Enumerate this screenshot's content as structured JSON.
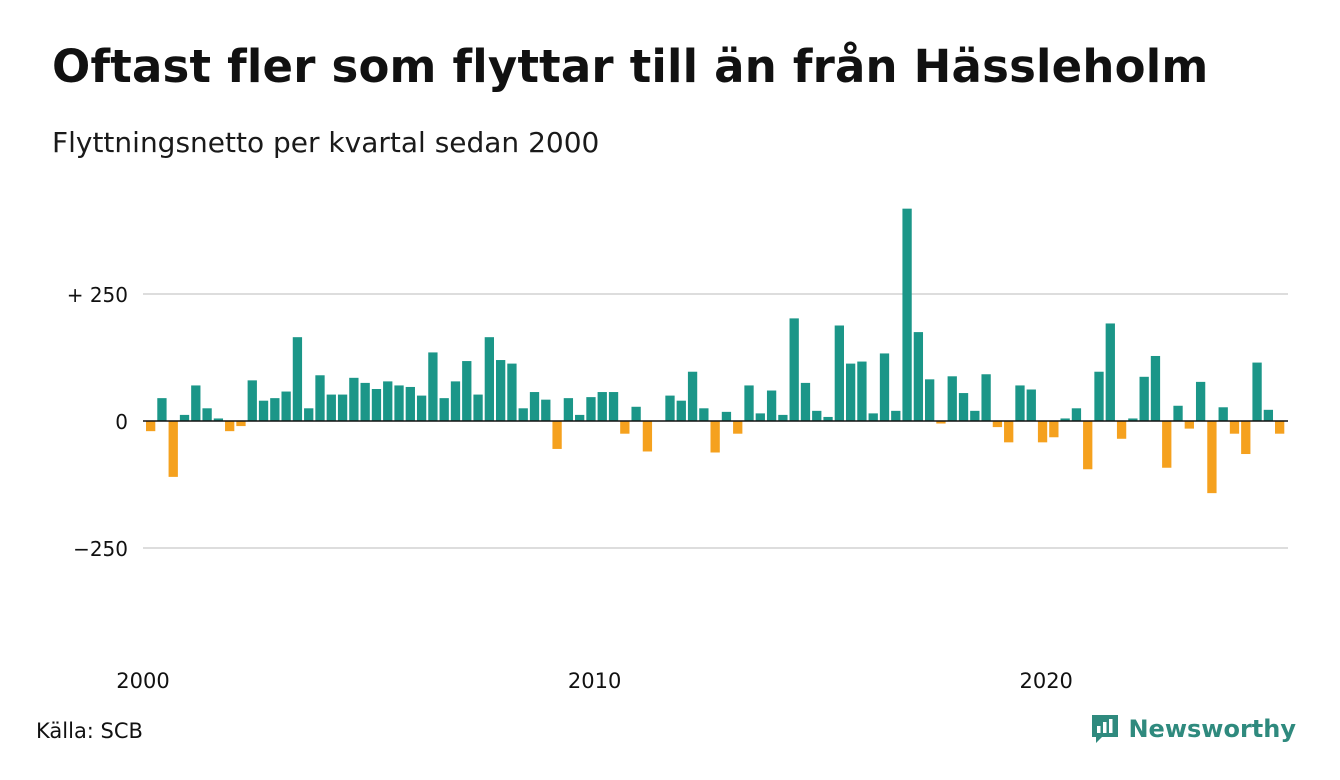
{
  "title": "Oftast fler som flyttar till än från Hässleholm",
  "subtitle": "Flyttningsnetto per kvartal sedan 2000",
  "source": "Källa: SCB",
  "brand": "Newsworthy",
  "colors": {
    "positive": "#1b9688",
    "negative": "#f5a11e",
    "grid": "#dddddd",
    "axis": "#111111",
    "brand": "#2f8a7e"
  },
  "chart_data": {
    "type": "bar",
    "title": "Oftast fler som flyttar till än från Hässleholm",
    "subtitle": "Flyttningsnetto per kvartal sedan 2000",
    "xlabel": "",
    "ylabel": "",
    "ylim": [
      -430,
      430
    ],
    "grid": true,
    "y_ticks": [
      {
        "value": 250,
        "label": "+ 250"
      },
      {
        "value": 0,
        "label": "0"
      },
      {
        "value": -250,
        "label": "−250"
      }
    ],
    "x_ticks": [
      {
        "year": 2000,
        "label": "2000"
      },
      {
        "year": 2010,
        "label": "2010"
      },
      {
        "year": 2020,
        "label": "2020"
      }
    ],
    "start": "2000-Q1",
    "values": [
      -20,
      45,
      -110,
      12,
      70,
      25,
      5,
      -20,
      -10,
      80,
      40,
      45,
      58,
      165,
      25,
      90,
      52,
      52,
      85,
      75,
      63,
      78,
      70,
      67,
      50,
      135,
      45,
      78,
      118,
      52,
      165,
      120,
      113,
      25,
      57,
      42,
      -55,
      45,
      12,
      47,
      57,
      57,
      -25,
      28,
      -60,
      0,
      50,
      40,
      97,
      25,
      -62,
      18,
      -25,
      70,
      15,
      60,
      12,
      202,
      75,
      20,
      8,
      188,
      113,
      117,
      15,
      133,
      20,
      418,
      175,
      82,
      -5,
      88,
      55,
      20,
      92,
      -12,
      -42,
      70,
      62,
      -42,
      -32,
      5,
      25,
      -95,
      97,
      192,
      -35,
      5,
      87,
      128,
      -92,
      30,
      -15,
      77,
      -142,
      27,
      -25,
      -65,
      115,
      22,
      -25
    ]
  }
}
